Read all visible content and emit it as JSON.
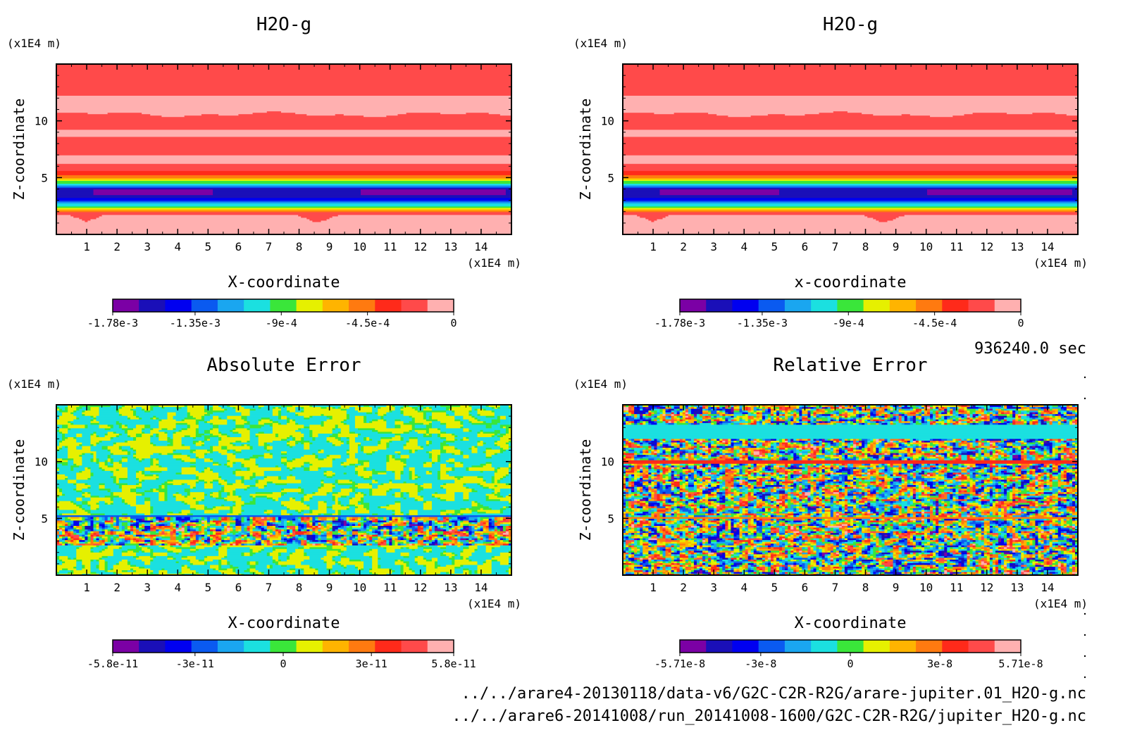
{
  "chart_data": [
    {
      "type": "heatmap",
      "title": "H2O-g",
      "xlabel": "X-coordinate",
      "ylabel": "Z-coordinate",
      "x_unit": "(x1E4 m)",
      "y_unit": "(x1E4 m)",
      "xlim": [
        0,
        15
      ],
      "ylim": [
        0,
        15
      ],
      "x_ticks": [
        "1",
        "2",
        "3",
        "4",
        "5",
        "6",
        "7",
        "8",
        "9",
        "10",
        "11",
        "12",
        "13",
        "14"
      ],
      "y_ticks": [
        "5",
        "10"
      ],
      "colorbar": {
        "range": [
          -0.00178,
          0
        ],
        "tick_labels": [
          "-1.78e-3",
          "-1.35e-3",
          "-9e-4",
          "-4.5e-4",
          "0"
        ],
        "tick_values": [
          -0.00178,
          -0.00135,
          -0.0009,
          -0.00045,
          0
        ]
      },
      "pattern": "stratified"
    },
    {
      "type": "heatmap",
      "title": "H2O-g",
      "xlabel": "x-coordinate",
      "ylabel": "Z-coordinate",
      "x_unit": "(x1E4 m)",
      "y_unit": "(x1E4 m)",
      "xlim": [
        0,
        15
      ],
      "ylim": [
        0,
        15
      ],
      "x_ticks": [
        "1",
        "2",
        "3",
        "4",
        "5",
        "6",
        "7",
        "8",
        "9",
        "10",
        "11",
        "12",
        "13",
        "14"
      ],
      "y_ticks": [
        "5",
        "10"
      ],
      "colorbar": {
        "range": [
          -0.00178,
          0
        ],
        "tick_labels": [
          "-1.78e-3",
          "-1.35e-3",
          "-9e-4",
          "-4.5e-4",
          "0"
        ],
        "tick_values": [
          -0.00178,
          -0.00135,
          -0.0009,
          -0.00045,
          0
        ]
      },
      "pattern": "stratified"
    },
    {
      "type": "heatmap",
      "title": "Absolute Error",
      "xlabel": "X-coordinate",
      "ylabel": "Z-coordinate",
      "x_unit": "(x1E4 m)",
      "y_unit": "(x1E4 m)",
      "xlim": [
        0,
        15
      ],
      "ylim": [
        0,
        15
      ],
      "x_ticks": [
        "1",
        "2",
        "3",
        "4",
        "5",
        "6",
        "7",
        "8",
        "9",
        "10",
        "11",
        "12",
        "13",
        "14"
      ],
      "y_ticks": [
        "5",
        "10"
      ],
      "colorbar": {
        "range": [
          -5.8e-11,
          5.8e-11
        ],
        "tick_labels": [
          "-5.8e-11",
          "-3e-11",
          "0",
          "3e-11",
          "5.8e-11"
        ],
        "tick_values": [
          -5.8e-11,
          -3e-11,
          0,
          3e-11,
          5.8e-11
        ]
      },
      "pattern": "noise-abs"
    },
    {
      "type": "heatmap",
      "title": "Relative Error",
      "xlabel": "X-coordinate",
      "ylabel": "Z-coordinate",
      "x_unit": "(x1E4 m)",
      "y_unit": "(x1E4 m)",
      "xlim": [
        0,
        15
      ],
      "ylim": [
        0,
        15
      ],
      "x_ticks": [
        "1",
        "2",
        "3",
        "4",
        "5",
        "6",
        "7",
        "8",
        "9",
        "10",
        "11",
        "12",
        "13",
        "14"
      ],
      "y_ticks": [
        "5",
        "10"
      ],
      "colorbar": {
        "range": [
          -5.71e-08,
          5.71e-08
        ],
        "tick_labels": [
          "-5.71e-8",
          "-3e-8",
          "0",
          "3e-8",
          "5.71e-8"
        ],
        "tick_values": [
          -5.71e-08,
          -3e-08,
          0,
          3e-08,
          5.71e-08
        ]
      },
      "pattern": "noise-rel"
    }
  ],
  "palette": [
    "#7b00a5",
    "#1a0fb8",
    "#0000f0",
    "#0a5af0",
    "#1aa6f0",
    "#1be0e0",
    "#3ae63a",
    "#e6f000",
    "#ffb400",
    "#ff7a10",
    "#ff2a1a",
    "#ff4a4a",
    "#ffb0b0"
  ],
  "time_label": "936240.0 sec",
  "file_paths": [
    "../../arare4-20130118/data-v6/G2C-C2R-R2G/arare-jupiter.01_H2O-g.nc",
    "../../arare6-20141008/run_20141008-1600/G2C-C2R-R2G/jupiter_H2O-g.nc"
  ]
}
